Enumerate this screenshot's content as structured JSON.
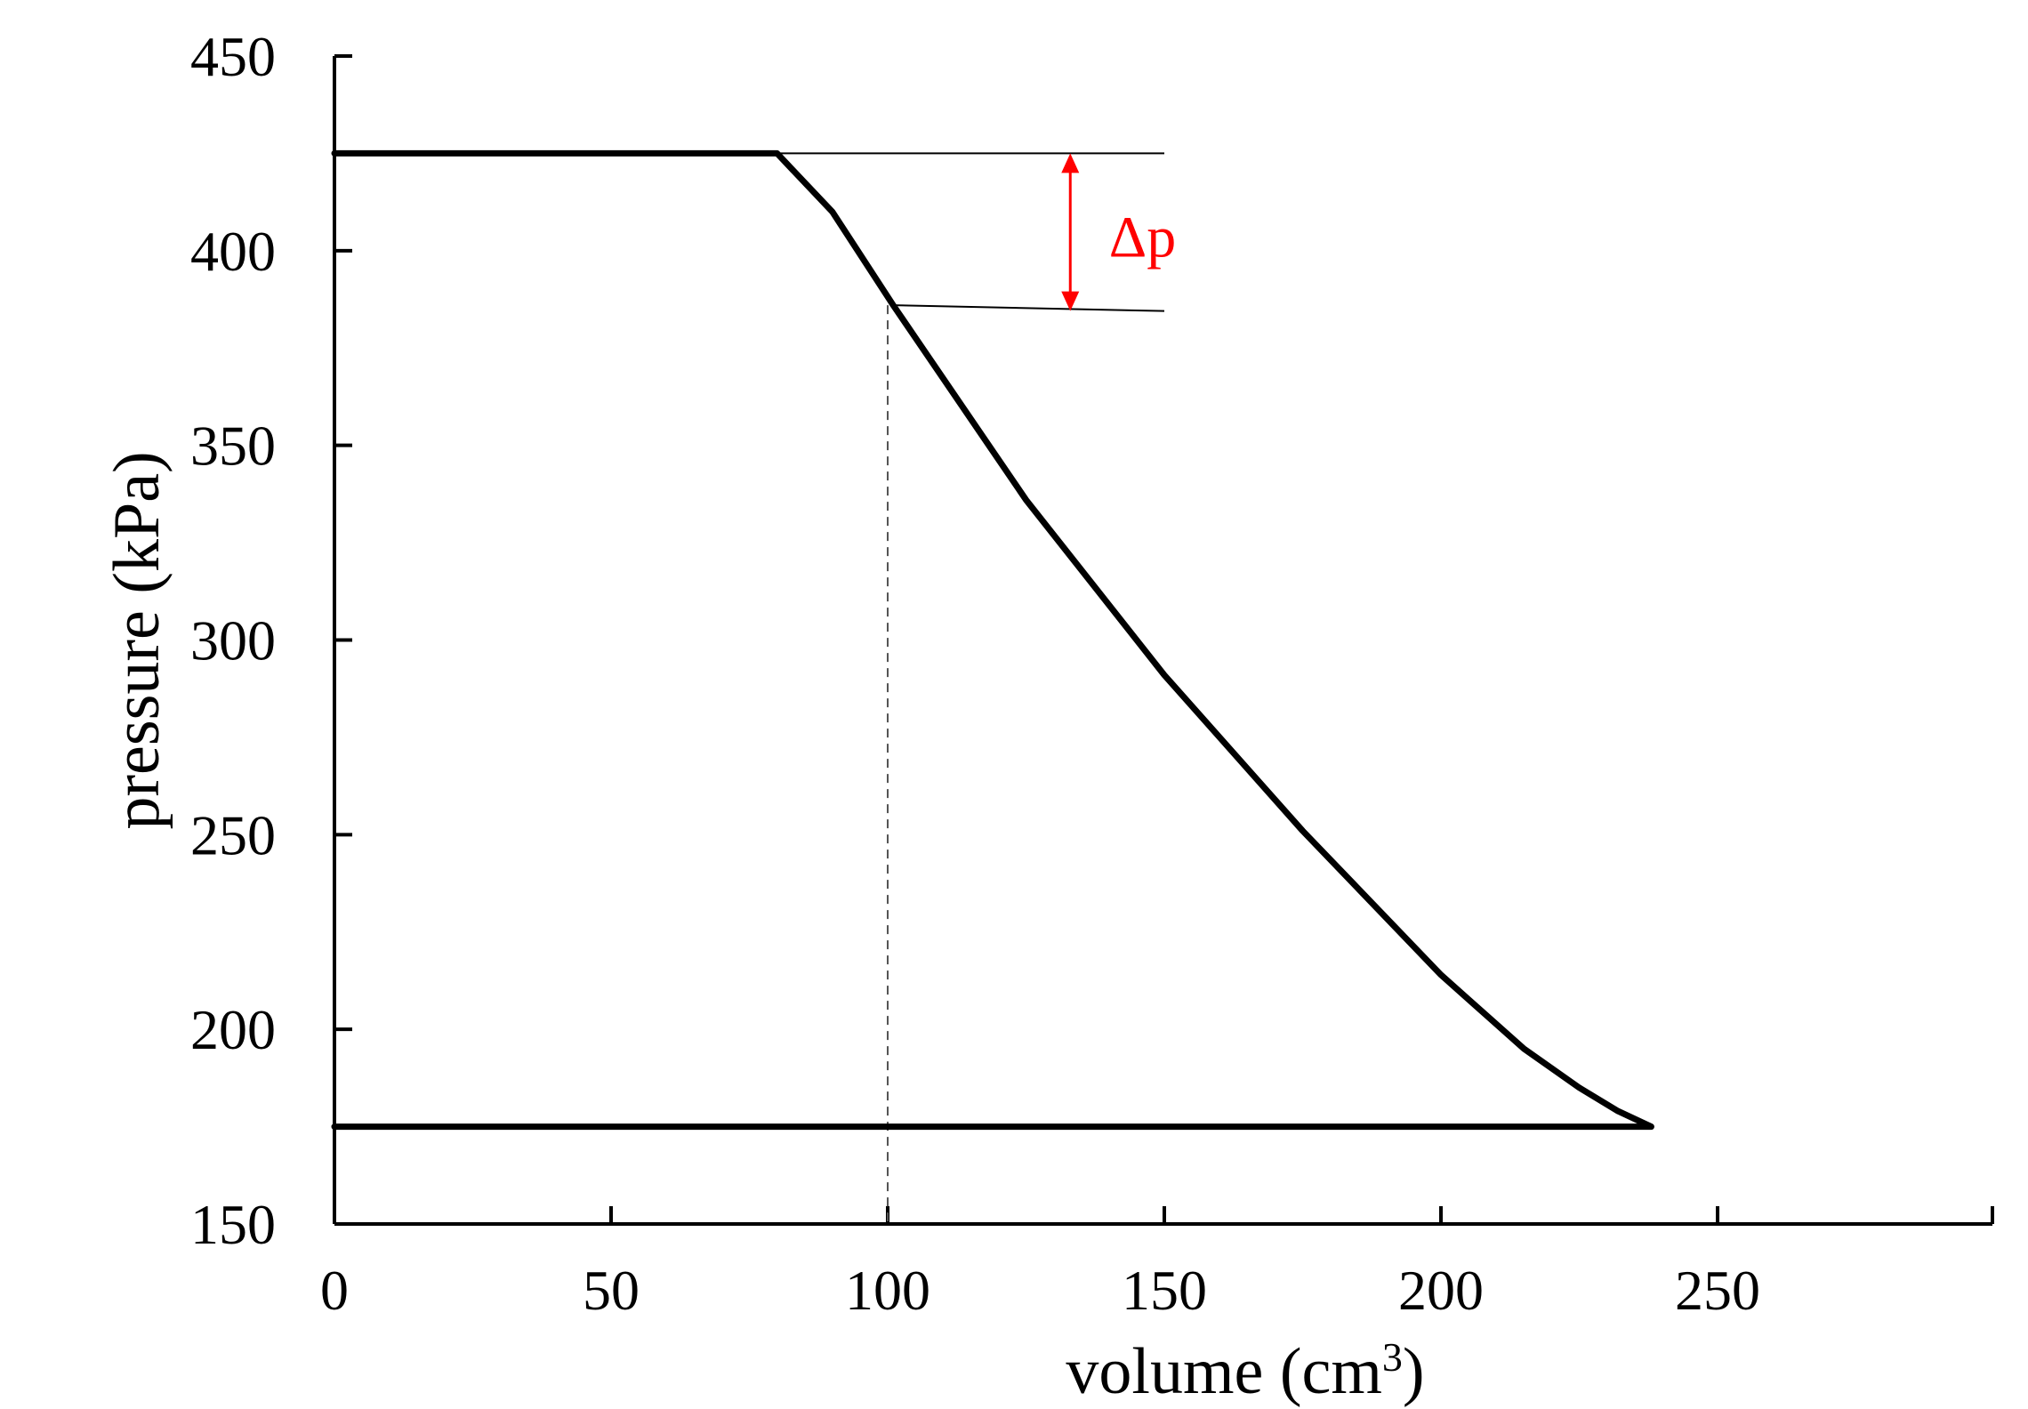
{
  "chart_data": {
    "type": "line",
    "title": "",
    "xlabel": "volume  (cm",
    "xlabel_sup": "3",
    "xlabel_close": ")",
    "ylabel": "pressure (kPa)",
    "xlim": [
      0,
      300
    ],
    "ylim": [
      150,
      450
    ],
    "x_ticks": [
      0,
      50,
      100,
      150,
      200,
      250
    ],
    "y_ticks": [
      150,
      200,
      250,
      300,
      350,
      400,
      450
    ],
    "x_tick_labels": [
      "0",
      "50",
      "100",
      "150",
      "200",
      "250"
    ],
    "y_tick_labels": [
      "150",
      "200",
      "250",
      "300",
      "350",
      "400",
      "450"
    ],
    "grid": false,
    "series": [
      {
        "color": "#000000",
        "points": [
          [
            0,
            425
          ],
          [
            50,
            425
          ],
          [
            80,
            425
          ],
          [
            90,
            410
          ],
          [
            101,
            386
          ],
          [
            125,
            336
          ],
          [
            150,
            291
          ],
          [
            175,
            251
          ],
          [
            200,
            214
          ],
          [
            215,
            195
          ],
          [
            225,
            185
          ],
          [
            232,
            179
          ],
          [
            238,
            175
          ],
          [
            200,
            175
          ],
          [
            100,
            175
          ],
          [
            0,
            175
          ]
        ]
      }
    ],
    "reference_lines": [
      {
        "style": "solid",
        "color": "#000000",
        "from": [
          80,
          425
        ],
        "to": [
          150,
          425
        ]
      },
      {
        "style": "solid",
        "color": "#000000",
        "from": [
          101,
          386
        ],
        "to": [
          150,
          384.5
        ]
      },
      {
        "style": "dashed",
        "color": "#555555",
        "from": [
          100,
          386
        ],
        "to": [
          100,
          150
        ]
      }
    ],
    "annotations": [
      {
        "text": "Δp",
        "color": "#ff0000",
        "arrow_x": 133,
        "arrow_from": 425,
        "arrow_to": 384.5,
        "label_x": 140,
        "label_y": 404
      }
    ]
  }
}
